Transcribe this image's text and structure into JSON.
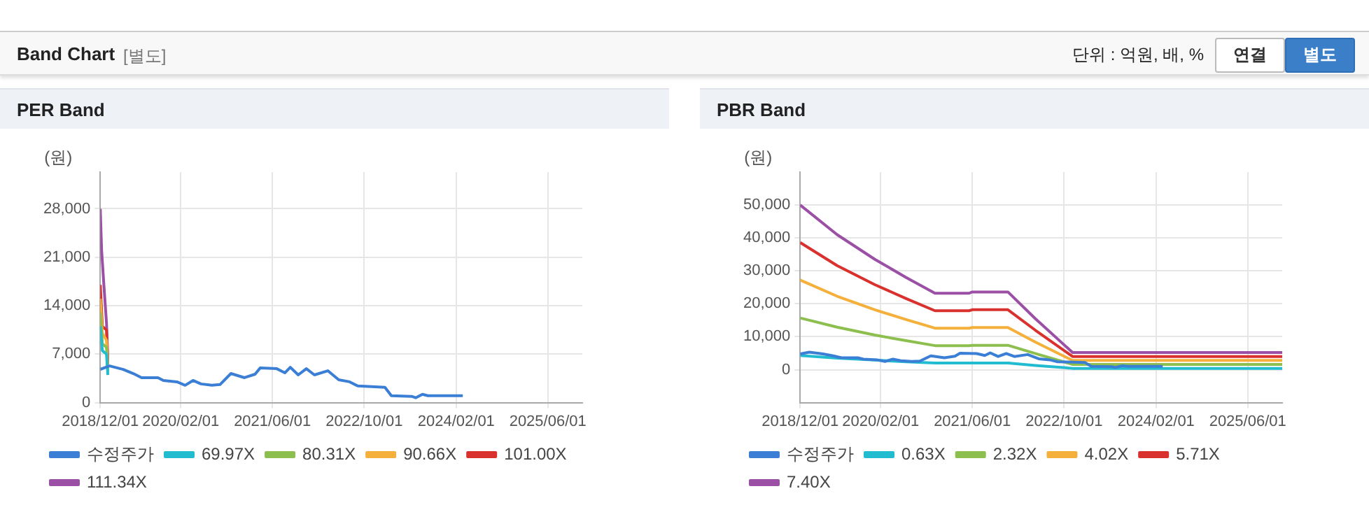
{
  "chart_data": [
    {
      "type": "other",
      "title": "Band Chart",
      "subtitle": "[별도]",
      "annotations": [
        "단위 : 억원, 배, %",
        "연결",
        "별도"
      ]
    },
    {
      "type": "line",
      "title": "PER Band",
      "ylabel": "(원)",
      "grid": true,
      "legend": "bottom",
      "xlim": [
        "2018-12-01",
        "2025-12-01"
      ],
      "xticks": [
        {
          "value": "2018-12-01",
          "label": "2018/12/01"
        },
        {
          "value": "2020-02-01",
          "label": "2020/02/01"
        },
        {
          "value": "2021-06-01",
          "label": "2021/06/01"
        },
        {
          "value": "2022-10-01",
          "label": "2022/10/01"
        },
        {
          "value": "2024-02-01",
          "label": "2024/02/01"
        },
        {
          "value": "2025-06-01",
          "label": "2025/06/01"
        }
      ],
      "ylim": [
        0,
        33300
      ],
      "yticks": [
        {
          "value": 0,
          "label": "0"
        },
        {
          "value": 7000,
          "label": "7,000"
        },
        {
          "value": 14000,
          "label": "14,000"
        },
        {
          "value": 21000,
          "label": "21,000"
        },
        {
          "value": 28000,
          "label": "28,000"
        }
      ],
      "series": [
        {
          "name": "수정주가",
          "color": "#3a7fd5",
          "x": [
            "2018-12-01",
            "2019-01-19",
            "2019-04-01",
            "2019-05-25",
            "2019-07-08",
            "2019-10-03",
            "2019-11-01",
            "2020-01-12",
            "2020-02-24",
            "2020-04-06",
            "2020-05-18",
            "2020-07-15",
            "2020-08-27",
            "2020-10-24",
            "2021-01-04",
            "2021-03-01",
            "2021-03-28",
            "2021-06-24",
            "2021-08-06",
            "2021-09-04",
            "2021-10-16",
            "2021-11-28",
            "2022-01-10",
            "2022-03-22",
            "2022-05-19",
            "2022-07-16",
            "2022-08-28",
            "2023-01-19",
            "2023-02-22",
            "2023-06-10",
            "2023-07-01",
            "2023-08-06",
            "2023-09-04",
            "2024-03-07"
          ],
          "values": [
            4800,
            5300,
            4800,
            4200,
            3600,
            3600,
            3200,
            3000,
            2500,
            3200,
            2700,
            2500,
            2600,
            4200,
            3600,
            4100,
            5000,
            4900,
            4300,
            5100,
            4000,
            4900,
            4000,
            4600,
            3300,
            3000,
            2400,
            2200,
            1000,
            900,
            700,
            1200,
            1000,
            1000
          ]
        },
        {
          "name": "69.97X",
          "color": "#22bcd0",
          "x": [
            "2018-12-01",
            "2018-12-12",
            "2019-01-03",
            "2019-01-10"
          ],
          "values": [
            11000,
            7500,
            7000,
            4000
          ]
        },
        {
          "name": "80.31X",
          "color": "#8dbf4f",
          "x": [
            "2018-12-01",
            "2018-12-12",
            "2019-01-03",
            "2019-01-10"
          ],
          "values": [
            13000,
            8500,
            8000,
            4500
          ]
        },
        {
          "name": "90.66X",
          "color": "#f4b03a",
          "x": [
            "2018-12-01",
            "2018-12-12",
            "2019-01-03",
            "2019-01-10"
          ],
          "values": [
            15000,
            10000,
            9000,
            5000
          ]
        },
        {
          "name": "101.00X",
          "color": "#d9322e",
          "x": [
            "2018-12-01",
            "2018-12-12",
            "2019-01-03",
            "2019-01-10"
          ],
          "values": [
            17000,
            11000,
            10500,
            5500
          ]
        },
        {
          "name": "111.34X",
          "color": "#9b4fa5",
          "x": [
            "2018-12-01",
            "2018-12-08",
            "2018-12-20",
            "2019-01-03",
            "2019-01-10"
          ],
          "values": [
            28000,
            22000,
            17000,
            11500,
            6000
          ]
        }
      ]
    },
    {
      "type": "line",
      "title": "PBR Band",
      "ylabel": "(원)",
      "grid": true,
      "legend": "bottom",
      "xlim": [
        "2018-12-01",
        "2025-12-01"
      ],
      "xticks": [
        {
          "value": "2018-12-01",
          "label": "2018/12/01"
        },
        {
          "value": "2020-02-01",
          "label": "2020/02/01"
        },
        {
          "value": "2021-06-01",
          "label": "2021/06/01"
        },
        {
          "value": "2022-10-01",
          "label": "2022/10/01"
        },
        {
          "value": "2024-02-01",
          "label": "2024/02/01"
        },
        {
          "value": "2025-06-01",
          "label": "2025/06/01"
        }
      ],
      "ylim": [
        -10000,
        60000
      ],
      "yticks": [
        {
          "value": 0,
          "label": "0"
        },
        {
          "value": 10000,
          "label": "10,000"
        },
        {
          "value": 20000,
          "label": "20,000"
        },
        {
          "value": 30000,
          "label": "30,000"
        },
        {
          "value": 40000,
          "label": "40,000"
        },
        {
          "value": 50000,
          "label": "50,000"
        }
      ],
      "series": [
        {
          "name": "수정주가",
          "color": "#3a7fd5",
          "x": [
            "2018-12-01",
            "2019-01-19",
            "2019-04-01",
            "2019-05-25",
            "2019-07-08",
            "2019-10-03",
            "2019-11-01",
            "2020-01-12",
            "2020-02-24",
            "2020-04-06",
            "2020-05-18",
            "2020-07-15",
            "2020-08-27",
            "2020-10-24",
            "2021-01-04",
            "2021-03-01",
            "2021-03-28",
            "2021-06-24",
            "2021-08-06",
            "2021-09-04",
            "2021-10-16",
            "2021-11-28",
            "2022-01-10",
            "2022-03-22",
            "2022-05-19",
            "2022-07-16",
            "2022-08-28",
            "2023-01-19",
            "2023-02-22",
            "2023-06-10",
            "2023-07-01",
            "2023-08-06",
            "2023-09-04",
            "2024-03-07"
          ],
          "values": [
            4800,
            5300,
            4800,
            4200,
            3600,
            3600,
            3200,
            3000,
            2500,
            3200,
            2700,
            2500,
            2600,
            4200,
            3600,
            4100,
            5000,
            4900,
            4300,
            5100,
            4000,
            4900,
            4000,
            4600,
            3300,
            3000,
            2400,
            2200,
            1000,
            900,
            700,
            1200,
            1000,
            1000
          ]
        },
        {
          "name": "0.63X",
          "color": "#22bcd0",
          "x": [
            "2018-12-01",
            "2019-06-15",
            "2020-01-01",
            "2020-06-15",
            "2020-11-15",
            "2021-05-15",
            "2021-06-01",
            "2021-12-07",
            "2022-05-01",
            "2022-11-15",
            "2025-12-01"
          ],
          "values": [
            4300,
            3500,
            2900,
            2400,
            2000,
            2000,
            2000,
            2000,
            1300,
            400,
            400
          ]
        },
        {
          "name": "2.32X",
          "color": "#8dbf4f",
          "x": [
            "2018-12-01",
            "2019-06-15",
            "2020-01-01",
            "2020-06-15",
            "2020-11-15",
            "2021-05-15",
            "2021-06-01",
            "2021-12-07",
            "2022-05-01",
            "2022-11-15",
            "2025-12-01"
          ],
          "values": [
            15700,
            12900,
            10500,
            8800,
            7300,
            7300,
            7400,
            7400,
            4900,
            1600,
            1600
          ]
        },
        {
          "name": "4.02X",
          "color": "#f4b03a",
          "x": [
            "2018-12-01",
            "2019-06-15",
            "2020-01-01",
            "2020-06-15",
            "2020-11-15",
            "2021-05-15",
            "2021-06-01",
            "2021-12-07",
            "2022-05-01",
            "2022-11-15",
            "2025-12-01"
          ],
          "values": [
            27200,
            22300,
            18200,
            15200,
            12600,
            12600,
            12800,
            12800,
            8400,
            2800,
            2800
          ]
        },
        {
          "name": "5.71X",
          "color": "#d9322e",
          "x": [
            "2018-12-01",
            "2019-06-15",
            "2020-01-01",
            "2020-06-15",
            "2020-11-15",
            "2021-05-15",
            "2021-06-01",
            "2021-12-07",
            "2022-05-01",
            "2022-11-15",
            "2025-12-01"
          ],
          "values": [
            38600,
            31600,
            25800,
            21600,
            17900,
            17900,
            18200,
            18200,
            12000,
            4000,
            4000
          ]
        },
        {
          "name": "7.40X",
          "color": "#9b4fa5",
          "x": [
            "2018-12-01",
            "2019-06-15",
            "2020-01-01",
            "2020-06-15",
            "2020-11-15",
            "2021-05-15",
            "2021-06-01",
            "2021-12-07",
            "2022-05-01",
            "2022-11-15",
            "2025-12-01"
          ],
          "values": [
            50000,
            41000,
            33500,
            28000,
            23200,
            23200,
            23600,
            23600,
            15500,
            5200,
            5200
          ]
        }
      ]
    }
  ]
}
